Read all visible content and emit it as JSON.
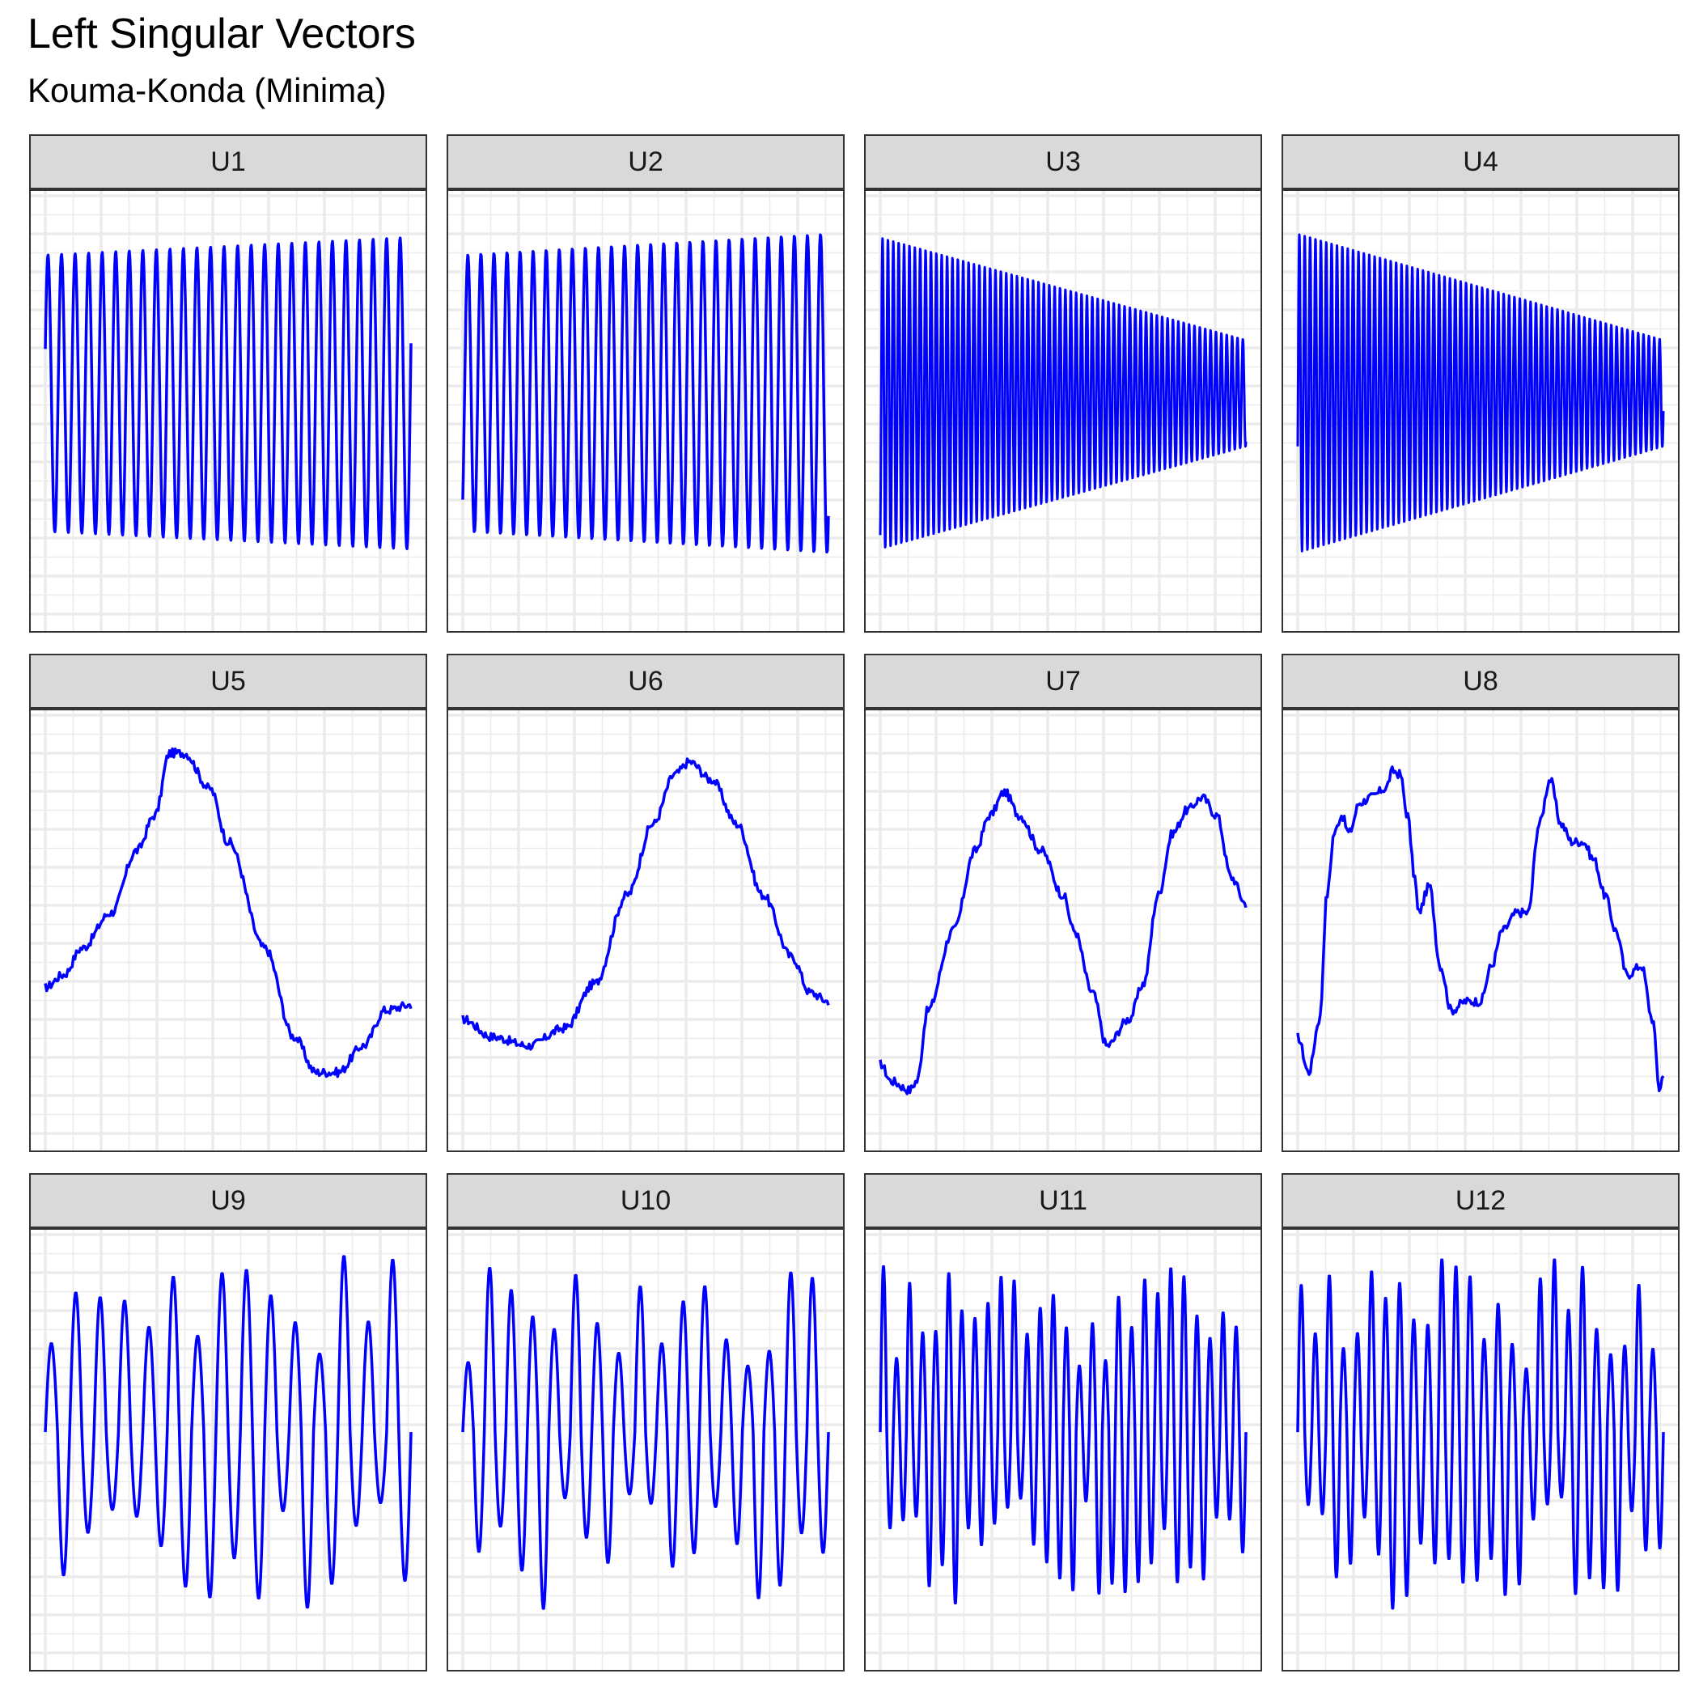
{
  "title": "Left Singular Vectors",
  "subtitle": "Kouma-Konda (Minima)",
  "colors": {
    "line": "#0000ff",
    "strip_bg": "#d9d9d9",
    "grid": "#ebebeb",
    "border": "#333333"
  },
  "chart_data": {
    "type": "line",
    "grid": true,
    "axis_ticks_shown": false,
    "panels": [
      {
        "label": "U1",
        "shape": "oscillation",
        "cycles": 27,
        "amp_start": 0.78,
        "amp_end": 0.88,
        "start": 0.25,
        "end": 0.1
      },
      {
        "label": "U2",
        "shape": "oscillation",
        "cycles": 28,
        "amp_start": 0.78,
        "amp_end": 0.9,
        "start": -0.6,
        "end": 0.78
      },
      {
        "label": "U3",
        "shape": "oscillation",
        "cycles": 68,
        "amp_start": 0.88,
        "amp_end": 0.3,
        "start": -0.8,
        "end": -0.2
      },
      {
        "label": "U4",
        "shape": "oscillation",
        "cycles": 68,
        "amp_start": 0.9,
        "amp_end": 0.3,
        "start": -0.3,
        "end": 0.2
      },
      {
        "label": "U5",
        "shape": "curve",
        "points": [
          [
            0,
            -0.42
          ],
          [
            0.05,
            -0.35
          ],
          [
            0.1,
            -0.2
          ],
          [
            0.18,
            0.0
          ],
          [
            0.25,
            0.35
          ],
          [
            0.3,
            0.55
          ],
          [
            0.34,
            0.9
          ],
          [
            0.38,
            0.9
          ],
          [
            0.45,
            0.7
          ],
          [
            0.5,
            0.4
          ],
          [
            0.6,
            -0.2
          ],
          [
            0.68,
            -0.7
          ],
          [
            0.74,
            -0.9
          ],
          [
            0.8,
            -0.9
          ],
          [
            0.87,
            -0.75
          ],
          [
            0.93,
            -0.55
          ],
          [
            1.0,
            -0.52
          ]
        ]
      },
      {
        "label": "U6",
        "shape": "curve",
        "points": [
          [
            0,
            -0.6
          ],
          [
            0.08,
            -0.7
          ],
          [
            0.18,
            -0.75
          ],
          [
            0.28,
            -0.65
          ],
          [
            0.36,
            -0.4
          ],
          [
            0.45,
            0.1
          ],
          [
            0.52,
            0.5
          ],
          [
            0.58,
            0.78
          ],
          [
            0.62,
            0.85
          ],
          [
            0.68,
            0.75
          ],
          [
            0.75,
            0.5
          ],
          [
            0.82,
            0.1
          ],
          [
            0.9,
            -0.25
          ],
          [
            0.95,
            -0.45
          ],
          [
            1.0,
            -0.5
          ]
        ]
      },
      {
        "label": "U7",
        "shape": "curve",
        "points": [
          [
            0,
            -0.85
          ],
          [
            0.03,
            -0.95
          ],
          [
            0.08,
            -1.0
          ],
          [
            0.1,
            -0.95
          ],
          [
            0.13,
            -0.55
          ],
          [
            0.2,
            -0.1
          ],
          [
            0.26,
            0.35
          ],
          [
            0.3,
            0.55
          ],
          [
            0.34,
            0.68
          ],
          [
            0.38,
            0.55
          ],
          [
            0.44,
            0.35
          ],
          [
            0.5,
            0.1
          ],
          [
            0.53,
            -0.1
          ],
          [
            0.58,
            -0.45
          ],
          [
            0.62,
            -0.75
          ],
          [
            0.68,
            -0.6
          ],
          [
            0.72,
            -0.4
          ],
          [
            0.76,
            0.1
          ],
          [
            0.8,
            0.45
          ],
          [
            0.84,
            0.58
          ],
          [
            0.88,
            0.65
          ],
          [
            0.92,
            0.55
          ],
          [
            0.96,
            0.2
          ],
          [
            1.0,
            0.05
          ]
        ]
      },
      {
        "label": "U8",
        "shape": "curve",
        "points": [
          [
            0,
            -0.7
          ],
          [
            0.03,
            -0.9
          ],
          [
            0.06,
            -0.6
          ],
          [
            0.08,
            0.1
          ],
          [
            0.1,
            0.45
          ],
          [
            0.12,
            0.55
          ],
          [
            0.14,
            0.45
          ],
          [
            0.17,
            0.62
          ],
          [
            0.2,
            0.65
          ],
          [
            0.24,
            0.7
          ],
          [
            0.26,
            0.8
          ],
          [
            0.28,
            0.78
          ],
          [
            0.3,
            0.55
          ],
          [
            0.32,
            0.2
          ],
          [
            0.33,
            0.0
          ],
          [
            0.36,
            0.15
          ],
          [
            0.39,
            -0.3
          ],
          [
            0.42,
            -0.55
          ],
          [
            0.46,
            -0.5
          ],
          [
            0.5,
            -0.5
          ],
          [
            0.53,
            -0.3
          ],
          [
            0.56,
            -0.1
          ],
          [
            0.6,
            0.0
          ],
          [
            0.63,
            0.0
          ],
          [
            0.66,
            0.5
          ],
          [
            0.69,
            0.75
          ],
          [
            0.72,
            0.5
          ],
          [
            0.75,
            0.4
          ],
          [
            0.78,
            0.4
          ],
          [
            0.81,
            0.3
          ],
          [
            0.84,
            0.1
          ],
          [
            0.87,
            -0.1
          ],
          [
            0.9,
            -0.35
          ],
          [
            0.94,
            -0.3
          ],
          [
            0.97,
            -0.6
          ],
          [
            0.99,
            -1.0
          ],
          [
            1.0,
            -0.9
          ]
        ]
      },
      {
        "label": "U9",
        "shape": "wave",
        "seed": 9,
        "cycles": 15
      },
      {
        "label": "U10",
        "shape": "wave",
        "seed": 10,
        "cycles": 17
      },
      {
        "label": "U11",
        "shape": "wave",
        "seed": 11,
        "cycles": 28
      },
      {
        "label": "U12",
        "shape": "wave",
        "seed": 12,
        "cycles": 26
      }
    ]
  }
}
